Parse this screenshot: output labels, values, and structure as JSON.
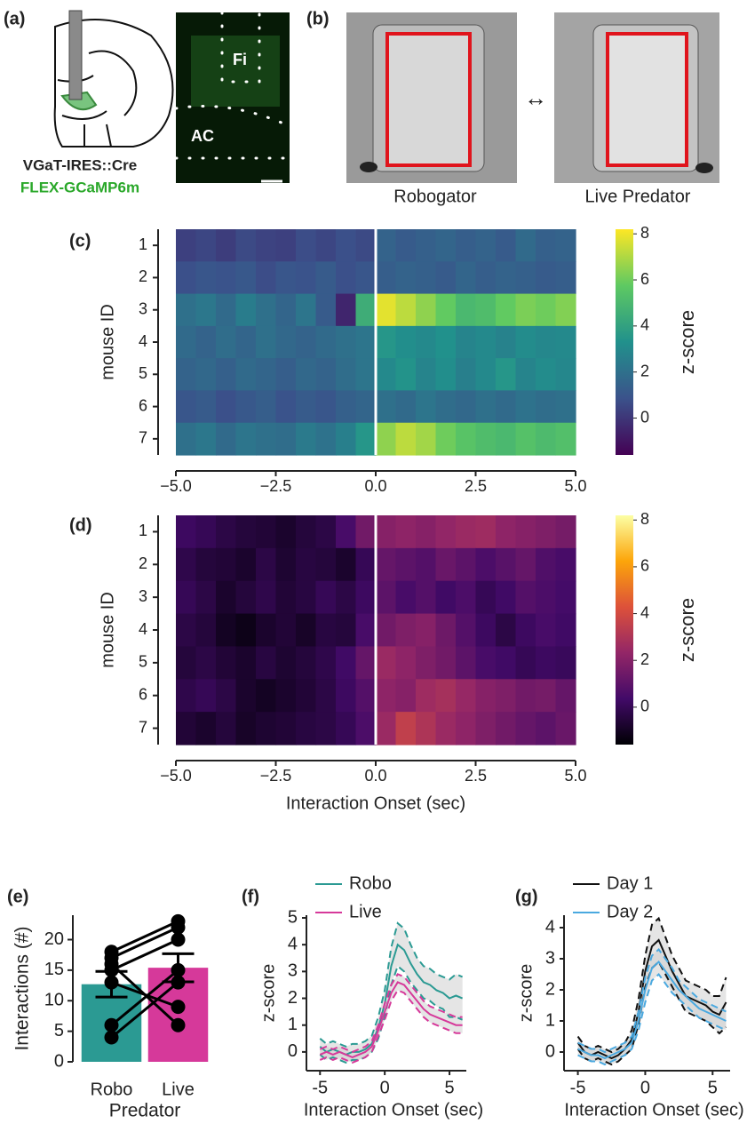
{
  "panel_a": {
    "panel": "(a)",
    "regions": [
      "Fi",
      "AC"
    ],
    "line1": "VGaT-IRES::Cre",
    "line2": "FLEX-GCaMP6m"
  },
  "panel_b": {
    "panel": "(b)",
    "left": "Robogator",
    "arrow": "↔",
    "right": "Live Predator"
  },
  "chart_data": [
    {
      "type": "heatmap",
      "panel": "(c)",
      "colormap": "viridis",
      "ylabel": "mouse ID",
      "colorbar_label": "z-score",
      "x": [
        -4.75,
        -4.25,
        -3.75,
        -3.25,
        -2.75,
        -2.25,
        -1.75,
        -1.25,
        -0.75,
        -0.25,
        0.25,
        0.75,
        1.25,
        1.75,
        2.25,
        2.75,
        3.25,
        3.75,
        4.25,
        4.75
      ],
      "y_categories": [
        "1",
        "2",
        "3",
        "4",
        "5",
        "6",
        "7"
      ],
      "z": [
        [
          0.3,
          0.5,
          0.2,
          0.6,
          0.4,
          0.3,
          0.7,
          0.5,
          0.8,
          0.6,
          1.5,
          1.2,
          1.4,
          1.6,
          1.3,
          1.5,
          1.2,
          1.8,
          1.4,
          1.5
        ],
        [
          0.8,
          1.0,
          0.9,
          1.1,
          0.7,
          1.0,
          0.9,
          1.2,
          0.8,
          1.0,
          1.3,
          1.5,
          1.4,
          1.2,
          1.6,
          1.3,
          1.5,
          1.4,
          1.2,
          1.3
        ],
        [
          2.0,
          2.3,
          1.8,
          2.5,
          2.0,
          1.6,
          2.2,
          1.2,
          -0.5,
          4.5,
          7.8,
          7.2,
          6.5,
          5.8,
          5.0,
          5.2,
          5.8,
          6.2,
          6.0,
          6.3
        ],
        [
          1.8,
          1.5,
          1.9,
          1.6,
          2.0,
          1.7,
          1.5,
          1.8,
          2.0,
          2.2,
          3.5,
          3.2,
          3.0,
          3.3,
          2.8,
          3.0,
          2.7,
          3.1,
          2.9,
          3.0
        ],
        [
          1.5,
          1.7,
          1.4,
          1.8,
          1.6,
          1.3,
          1.7,
          1.5,
          1.9,
          2.2,
          3.0,
          3.4,
          2.8,
          3.2,
          2.6,
          3.0,
          3.5,
          2.8,
          3.1,
          2.9
        ],
        [
          1.0,
          1.2,
          0.8,
          1.1,
          1.3,
          0.9,
          1.2,
          1.0,
          1.4,
          1.6,
          2.0,
          1.8,
          2.2,
          1.9,
          1.7,
          2.0,
          1.8,
          2.1,
          1.9,
          2.0
        ],
        [
          2.0,
          2.3,
          1.8,
          2.2,
          2.0,
          1.9,
          2.4,
          2.1,
          2.6,
          3.5,
          6.5,
          7.2,
          6.8,
          6.0,
          5.5,
          5.2,
          5.0,
          5.4,
          5.1,
          5.3
        ]
      ],
      "xlim": [
        -5,
        5
      ],
      "xticks": [
        {
          "value": -5,
          "label": "−5.0"
        },
        {
          "value": -2.5,
          "label": "−2.5"
        },
        {
          "value": 0,
          "label": "0.0"
        },
        2.5,
        {
          "value": 5,
          "label": "5.0"
        }
      ],
      "zlim": [
        -1.6,
        8.2
      ],
      "zticks": [
        0,
        2,
        4,
        6,
        8
      ]
    },
    {
      "type": "heatmap",
      "panel": "(d)",
      "colormap": "inferno",
      "ylabel": "mouse ID",
      "colorbar_label": "z-score",
      "xlabel": "Interaction Onset (sec)",
      "x": [
        -4.75,
        -4.25,
        -3.75,
        -3.25,
        -2.75,
        -2.25,
        -1.75,
        -1.25,
        -0.75,
        -0.25,
        0.25,
        0.75,
        1.25,
        1.75,
        2.25,
        2.75,
        3.25,
        3.75,
        4.25,
        4.75
      ],
      "y_categories": [
        "1",
        "2",
        "3",
        "4",
        "5",
        "6",
        "7"
      ],
      "z": [
        [
          0.2,
          0.0,
          -0.3,
          -0.5,
          -0.6,
          -0.8,
          -0.5,
          -0.3,
          0.5,
          1.5,
          2.0,
          2.2,
          2.0,
          2.3,
          2.5,
          2.6,
          2.2,
          2.0,
          1.8,
          1.6
        ],
        [
          -0.2,
          -0.5,
          -0.6,
          -0.8,
          -0.3,
          -0.7,
          -0.4,
          -0.5,
          -0.8,
          0.0,
          1.2,
          1.0,
          0.8,
          1.3,
          1.0,
          0.6,
          0.9,
          1.2,
          0.7,
          0.5
        ],
        [
          0.0,
          -0.3,
          -0.8,
          -0.5,
          -0.2,
          -0.6,
          -0.4,
          0.0,
          -0.3,
          0.2,
          1.0,
          0.5,
          0.8,
          0.3,
          0.6,
          0.0,
          0.3,
          0.8,
          0.6,
          0.4
        ],
        [
          -0.3,
          -0.5,
          -1.0,
          -1.2,
          -0.8,
          -0.6,
          -0.9,
          -0.4,
          -0.5,
          0.5,
          1.5,
          1.8,
          2.0,
          1.4,
          0.8,
          0.2,
          -0.3,
          0.2,
          0.5,
          0.3
        ],
        [
          -0.5,
          -0.3,
          -0.6,
          -0.8,
          -0.4,
          -0.7,
          -0.5,
          -0.2,
          0.3,
          1.2,
          2.5,
          2.2,
          1.8,
          1.5,
          1.0,
          0.5,
          0.3,
          0.0,
          0.2,
          0.1
        ],
        [
          -0.2,
          0.0,
          -0.3,
          -0.8,
          -1.0,
          -0.8,
          -0.6,
          -0.3,
          0.2,
          0.8,
          2.2,
          2.0,
          2.6,
          2.8,
          2.4,
          2.0,
          1.8,
          1.5,
          1.6,
          1.2
        ],
        [
          -0.6,
          -0.8,
          -0.5,
          -0.9,
          -0.7,
          -0.6,
          -0.4,
          -0.3,
          0.0,
          0.6,
          2.5,
          3.5,
          3.0,
          2.5,
          2.2,
          1.8,
          1.5,
          1.2,
          1.0,
          1.3
        ]
      ],
      "xlim": [
        -5,
        5
      ],
      "xticks": [
        {
          "value": -5,
          "label": "−5.0"
        },
        {
          "value": -2.5,
          "label": "−2.5"
        },
        {
          "value": 0,
          "label": "0.0"
        },
        2.5,
        {
          "value": 5,
          "label": "5.0"
        }
      ],
      "zlim": [
        -1.6,
        8.2
      ],
      "zticks": [
        0,
        2,
        4,
        6,
        8
      ]
    },
    {
      "type": "bar",
      "panel": "(e)",
      "ylabel": "Interactions (#)",
      "xlabel": "Predator",
      "categories": [
        "Robo",
        "Live"
      ],
      "values": [
        12.7,
        15.4
      ],
      "errors": [
        2.1,
        2.3
      ],
      "colors": [
        "#2b9a93",
        "#d6399a"
      ],
      "points": [
        [
          18,
          17,
          16,
          15,
          13,
          6,
          4
        ],
        [
          23,
          22,
          6,
          20,
          9,
          15,
          13
        ]
      ],
      "ylim": [
        0,
        24
      ],
      "yticks": [
        0,
        5,
        10,
        15,
        20
      ]
    },
    {
      "type": "line",
      "panel": "(f)",
      "ylabel": "z-score",
      "xlabel": "Interaction Onset (sec)",
      "x": [
        -5,
        -4.5,
        -4,
        -3.5,
        -3,
        -2.5,
        -2,
        -1.5,
        -1,
        -0.5,
        0,
        0.5,
        1,
        1.5,
        2,
        2.5,
        3,
        3.5,
        4,
        4.5,
        5,
        5.5,
        6
      ],
      "series": [
        {
          "name": "Robo",
          "color": "#2b9a93",
          "values": [
            0.2,
            0.0,
            0.1,
            0.0,
            -0.1,
            0.0,
            0.0,
            0.1,
            0.3,
            0.9,
            1.8,
            3.2,
            4.0,
            3.8,
            3.3,
            2.9,
            2.6,
            2.5,
            2.3,
            2.2,
            2.0,
            2.1,
            2.0
          ],
          "errors": [
            0.3,
            0.3,
            0.3,
            0.3,
            0.3,
            0.3,
            0.3,
            0.3,
            0.3,
            0.4,
            0.5,
            0.7,
            0.8,
            0.8,
            0.7,
            0.6,
            0.6,
            0.6,
            0.6,
            0.6,
            0.7,
            0.8,
            0.8
          ]
        },
        {
          "name": "Live",
          "color": "#d6399a",
          "values": [
            -0.1,
            0.0,
            -0.1,
            0.0,
            -0.1,
            -0.2,
            -0.1,
            0.0,
            0.2,
            0.8,
            1.5,
            2.2,
            2.6,
            2.5,
            2.2,
            1.9,
            1.6,
            1.4,
            1.3,
            1.2,
            1.1,
            1.0,
            1.0
          ],
          "errors": [
            0.2,
            0.2,
            0.2,
            0.2,
            0.2,
            0.2,
            0.2,
            0.2,
            0.2,
            0.2,
            0.3,
            0.3,
            0.3,
            0.3,
            0.3,
            0.3,
            0.3,
            0.3,
            0.3,
            0.3,
            0.3,
            0.3,
            0.3
          ]
        }
      ],
      "xlim": [
        -5.5,
        6.3
      ],
      "xticks": [
        -5,
        0,
        5
      ],
      "ylim": [
        -0.7,
        5.1
      ],
      "yticks": [
        0,
        1,
        2,
        3,
        4,
        5
      ]
    },
    {
      "type": "line",
      "panel": "(g)",
      "ylabel": "z-score",
      "xlabel": "Interaction Onset (sec)",
      "x": [
        -5,
        -4.5,
        -4,
        -3.5,
        -3,
        -2.5,
        -2,
        -1.5,
        -1,
        -0.5,
        0,
        0.5,
        1,
        1.5,
        2,
        2.5,
        3,
        3.5,
        4,
        4.5,
        5,
        5.5,
        6
      ],
      "series": [
        {
          "name": "Day 1",
          "color": "#111111",
          "values": [
            0.3,
            0.0,
            -0.1,
            0.0,
            -0.1,
            -0.2,
            -0.1,
            0.1,
            0.4,
            1.3,
            2.6,
            3.4,
            3.6,
            3.1,
            2.6,
            2.2,
            1.8,
            1.7,
            1.6,
            1.5,
            1.3,
            1.2,
            1.6
          ],
          "errors": [
            0.2,
            0.2,
            0.2,
            0.2,
            0.2,
            0.2,
            0.2,
            0.2,
            0.3,
            0.4,
            0.5,
            0.7,
            0.7,
            0.6,
            0.5,
            0.5,
            0.5,
            0.5,
            0.5,
            0.5,
            0.5,
            0.6,
            0.8
          ]
        },
        {
          "name": "Day 2",
          "color": "#4aa9e0",
          "values": [
            0.1,
            0.0,
            -0.1,
            -0.1,
            -0.2,
            -0.1,
            0.0,
            0.1,
            0.3,
            1.0,
            2.0,
            2.7,
            2.9,
            2.6,
            2.3,
            2.0,
            1.8,
            1.6,
            1.4,
            1.3,
            1.2,
            1.1,
            1.0
          ],
          "errors": [
            0.2,
            0.2,
            0.2,
            0.2,
            0.2,
            0.2,
            0.2,
            0.2,
            0.2,
            0.3,
            0.4,
            0.4,
            0.4,
            0.4,
            0.4,
            0.3,
            0.3,
            0.3,
            0.3,
            0.3,
            0.3,
            0.3,
            0.3
          ]
        }
      ],
      "xlim": [
        -5.5,
        6.3
      ],
      "xticks": [
        -5,
        0,
        5
      ],
      "ylim": [
        -0.6,
        4.4
      ],
      "yticks": [
        0,
        1,
        2,
        3,
        4
      ]
    }
  ]
}
